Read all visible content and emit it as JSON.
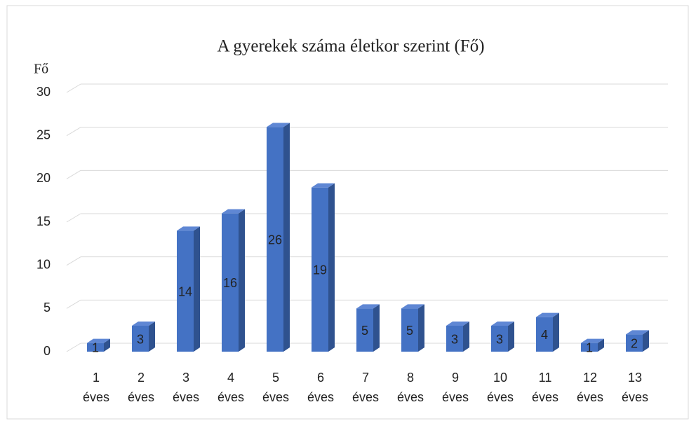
{
  "chart_data": {
    "type": "bar3d",
    "title": "A gyerekek száma életkor szerint (Fő)",
    "y_label": "Fő",
    "categories": [
      "1 éves",
      "2 éves",
      "3 éves",
      "4 éves",
      "5 éves",
      "6 éves",
      "7 éves",
      "8 éves",
      "9 éves",
      "10 éves",
      "11 éves",
      "12 éves",
      "13 éves"
    ],
    "values": [
      1,
      3,
      14,
      16,
      26,
      19,
      5,
      5,
      3,
      3,
      4,
      1,
      2
    ],
    "color": "#4472c4",
    "side_color": "#2f528f",
    "top_color": "#5f87d4",
    "ylim": [
      0,
      30
    ],
    "yticks": [
      0,
      5,
      10,
      15,
      20,
      25,
      30
    ],
    "grid": true
  }
}
